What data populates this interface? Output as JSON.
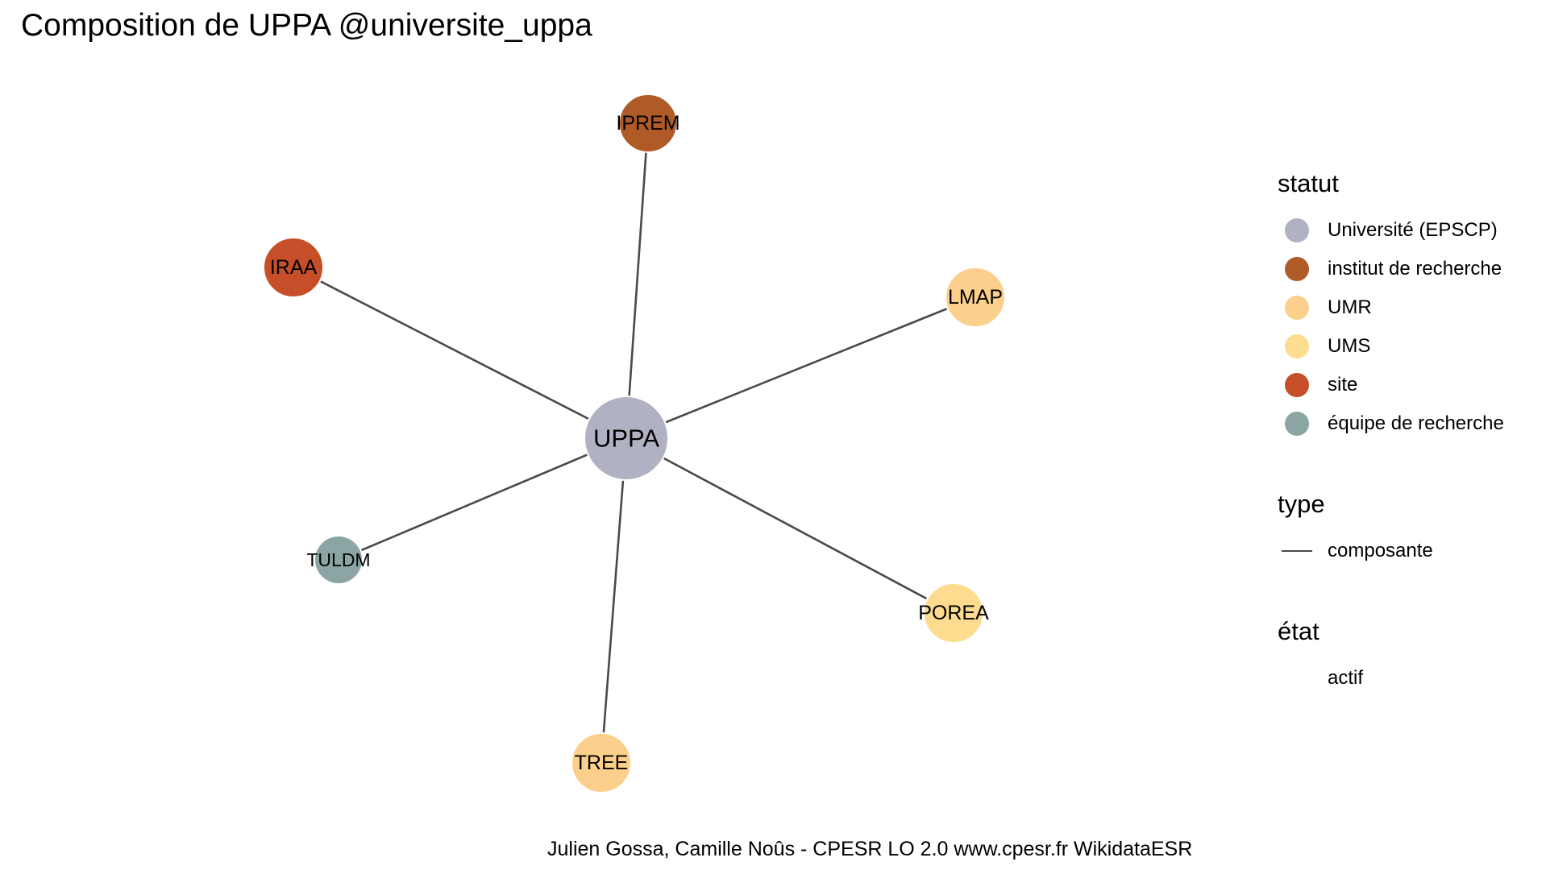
{
  "title": "Composition de UPPA @universite_uppa",
  "caption": "Julien Gossa, Camille Noûs - CPESR LO 2.0 www.cpesr.fr WikidataESR",
  "colors": {
    "Université (EPSCP)": "#b1b1c4",
    "institut de recherche": "#b05b27",
    "UMR": "#fcd08c",
    "UMS": "#fddc90",
    "site": "#c64e28",
    "équipe de recherche": "#8ba5a4",
    "edge": "#4a4a4a"
  },
  "graph": {
    "nodes": [
      {
        "id": "UPPA",
        "label": "UPPA",
        "statut": "Université (EPSCP)"
      },
      {
        "id": "IPREM",
        "label": "IPREM",
        "statut": "institut de recherche"
      },
      {
        "id": "IRAA",
        "label": "IRAA",
        "statut": "site"
      },
      {
        "id": "LMAP",
        "label": "LMAP",
        "statut": "UMR"
      },
      {
        "id": "TULDM",
        "label": "TULDM",
        "statut": "équipe de recherche"
      },
      {
        "id": "POREA",
        "label": "POREA",
        "statut": "UMS"
      },
      {
        "id": "TREE",
        "label": "TREE",
        "statut": "UMR"
      }
    ],
    "edges": [
      {
        "source": "UPPA",
        "target": "IPREM",
        "type": "composante"
      },
      {
        "source": "UPPA",
        "target": "IRAA",
        "type": "composante"
      },
      {
        "source": "UPPA",
        "target": "LMAP",
        "type": "composante"
      },
      {
        "source": "UPPA",
        "target": "TULDM",
        "type": "composante"
      },
      {
        "source": "UPPA",
        "target": "POREA",
        "type": "composante"
      },
      {
        "source": "UPPA",
        "target": "TREE",
        "type": "composante"
      }
    ]
  },
  "legend": {
    "statut": {
      "title": "statut",
      "items": [
        {
          "label": "Université (EPSCP)",
          "color": "#b1b1c4"
        },
        {
          "label": "institut de recherche",
          "color": "#b05b27"
        },
        {
          "label": "UMR",
          "color": "#fcd08c"
        },
        {
          "label": "UMS",
          "color": "#fddc90"
        },
        {
          "label": "site",
          "color": "#c64e28"
        },
        {
          "label": "équipe de recherche",
          "color": "#8ba5a4"
        }
      ]
    },
    "type": {
      "title": "type",
      "items": [
        {
          "label": "composante"
        }
      ]
    },
    "etat": {
      "title": "état",
      "items": [
        {
          "label": "actif"
        }
      ]
    }
  }
}
